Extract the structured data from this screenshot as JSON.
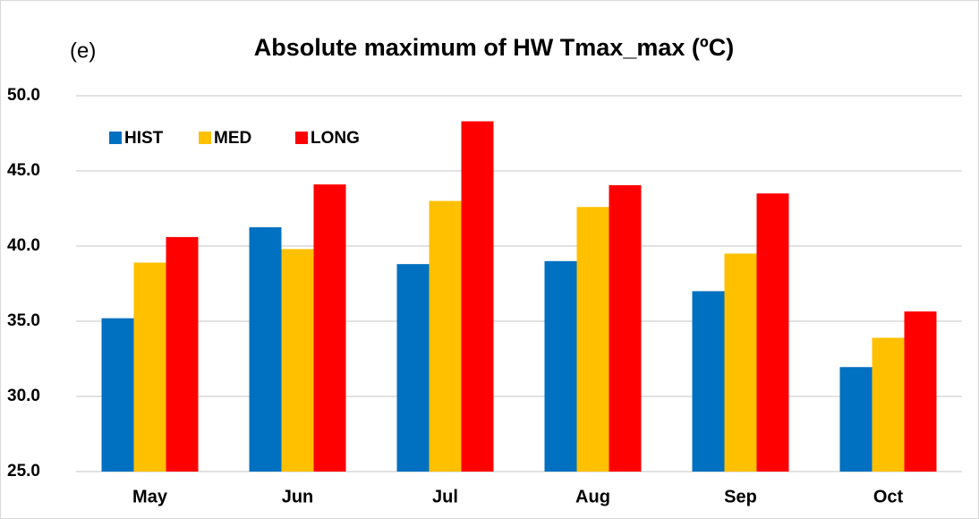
{
  "chart_data": {
    "type": "bar",
    "title": "Absolute maximum of HW Tmax_max (ºC)",
    "annotation": "(e)",
    "categories": [
      "May",
      "Jun",
      "Jul",
      "Aug",
      "Sep",
      "Oct"
    ],
    "series": [
      {
        "name": "HIST",
        "color": "#0070c0",
        "values": [
          35.2,
          41.25,
          38.8,
          39.0,
          37.0,
          31.95
        ]
      },
      {
        "name": "MED",
        "color": "#ffc000",
        "values": [
          38.9,
          39.8,
          43.0,
          42.6,
          39.5,
          33.9
        ]
      },
      {
        "name": "LONG",
        "color": "#ff0000",
        "values": [
          40.6,
          44.1,
          48.3,
          44.05,
          43.5,
          35.65
        ]
      }
    ],
    "ylim": [
      25,
      50
    ],
    "yticks": [
      {
        "value": 25,
        "label": "25.0"
      },
      {
        "value": 30,
        "label": "30.0"
      },
      {
        "value": 35,
        "label": "35.0"
      },
      {
        "value": 40,
        "label": "40.0"
      },
      {
        "value": 45,
        "label": "45.0"
      },
      {
        "value": 50,
        "label": "50.0"
      }
    ],
    "grid": true,
    "legend": "top-left"
  }
}
